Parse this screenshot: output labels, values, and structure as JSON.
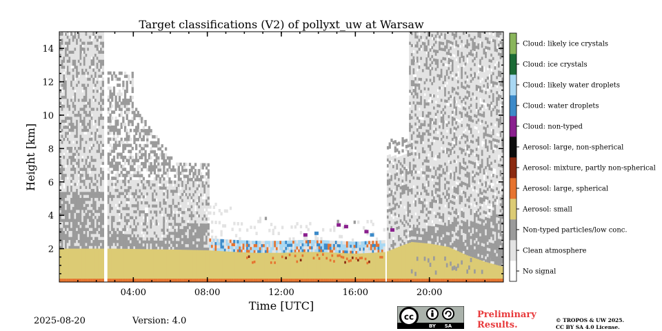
{
  "chart_data": {
    "type": "heatmap",
    "title": "Target classifications (V2) of pollyxt_uw at Warsaw",
    "xlabel": "Time [UTC]",
    "ylabel": "Height [km]",
    "xlim": [
      0,
      24
    ],
    "ylim": [
      0,
      15
    ],
    "xticks": [
      {
        "value": 4,
        "label": "04:00"
      },
      {
        "value": 8,
        "label": "08:00"
      },
      {
        "value": 12,
        "label": "12:00"
      },
      {
        "value": 16,
        "label": "16:00"
      },
      {
        "value": 20,
        "label": "20:00"
      }
    ],
    "yticks": [
      {
        "value": 2,
        "label": "2"
      },
      {
        "value": 4,
        "label": "4"
      },
      {
        "value": 6,
        "label": "6"
      },
      {
        "value": 8,
        "label": "8"
      },
      {
        "value": 10,
        "label": "10"
      },
      {
        "value": 12,
        "label": "12"
      },
      {
        "value": 14,
        "label": "14"
      }
    ],
    "classes": [
      {
        "label": "No signal",
        "color": "#ffffff"
      },
      {
        "label": "Clean atmosphere",
        "color": "#e3e3e3"
      },
      {
        "label": "Non-typed particles/low conc.",
        "color": "#9b9b9b"
      },
      {
        "label": "Aerosol: small",
        "color": "#dccb74"
      },
      {
        "label": "Aerosol: large, spherical",
        "color": "#e6732f"
      },
      {
        "label": "Aerosol: mixture, partly non-spherical",
        "color": "#8b2a11"
      },
      {
        "label": "Aerosol: large, non-spherical",
        "color": "#0d0d0d"
      },
      {
        "label": "Cloud: non-typed",
        "color": "#8a1f8e"
      },
      {
        "label": "Cloud: water droplets",
        "color": "#3c8ac9"
      },
      {
        "label": "Cloud: likely water droplets",
        "color": "#a9d8f3"
      },
      {
        "label": "Cloud: ice crystals",
        "color": "#1c6b36"
      },
      {
        "label": "Cloud: likely ice crystals",
        "color": "#8ab55b"
      }
    ],
    "layers": {
      "surface_large_spherical_top_km": 0.2,
      "aerosol_small_top_km": [
        {
          "t": 0,
          "h": 2.0
        },
        {
          "t": 2.8,
          "h": 2.0
        },
        {
          "t": 6,
          "h": 1.95
        },
        {
          "t": 8,
          "h": 1.9
        },
        {
          "t": 9.5,
          "h": 1.8
        },
        {
          "t": 10.5,
          "h": 1.75
        },
        {
          "t": 12,
          "h": 1.75
        },
        {
          "t": 13,
          "h": 1.8
        },
        {
          "t": 14,
          "h": 1.8
        },
        {
          "t": 15,
          "h": 1.75
        },
        {
          "t": 16,
          "h": 1.7
        },
        {
          "t": 17.6,
          "h": 1.8
        },
        {
          "t": 18.5,
          "h": 2.2
        },
        {
          "t": 19,
          "h": 2.4
        },
        {
          "t": 20,
          "h": 2.3
        },
        {
          "t": 21,
          "h": 2.1
        },
        {
          "t": 22,
          "h": 1.6
        },
        {
          "t": 23,
          "h": 1.2
        },
        {
          "t": 24,
          "h": 0.9
        }
      ],
      "no_signal_gaps_hours": [
        [
          2.45,
          2.65
        ],
        [
          17.55,
          17.72
        ]
      ],
      "clouds": [
        {
          "t": 15.1,
          "h": 3.4,
          "class": "Cloud: non-typed"
        },
        {
          "t": 15.5,
          "h": 3.3,
          "class": "Cloud: non-typed"
        },
        {
          "t": 16.6,
          "h": 3.0,
          "class": "Cloud: non-typed"
        },
        {
          "t": 13.3,
          "h": 2.8,
          "class": "Cloud: non-typed"
        },
        {
          "t": 16.9,
          "h": 2.8,
          "class": "Cloud: water droplets"
        },
        {
          "t": 13.9,
          "h": 2.9,
          "class": "Cloud: water droplets"
        },
        {
          "t": 18.0,
          "h": 3.1,
          "class": "Cloud: non-typed"
        }
      ]
    },
    "footer": {
      "date": "2025-08-20",
      "version": "Version: 4.0",
      "preliminary": [
        "Preliminary",
        "Results."
      ],
      "license": [
        "© TROPOS & UW 2025.",
        "CC BY SA 4.0 License."
      ],
      "cc_labels": {
        "cc": "cc",
        "by": "BY",
        "sa": "SA"
      }
    }
  }
}
